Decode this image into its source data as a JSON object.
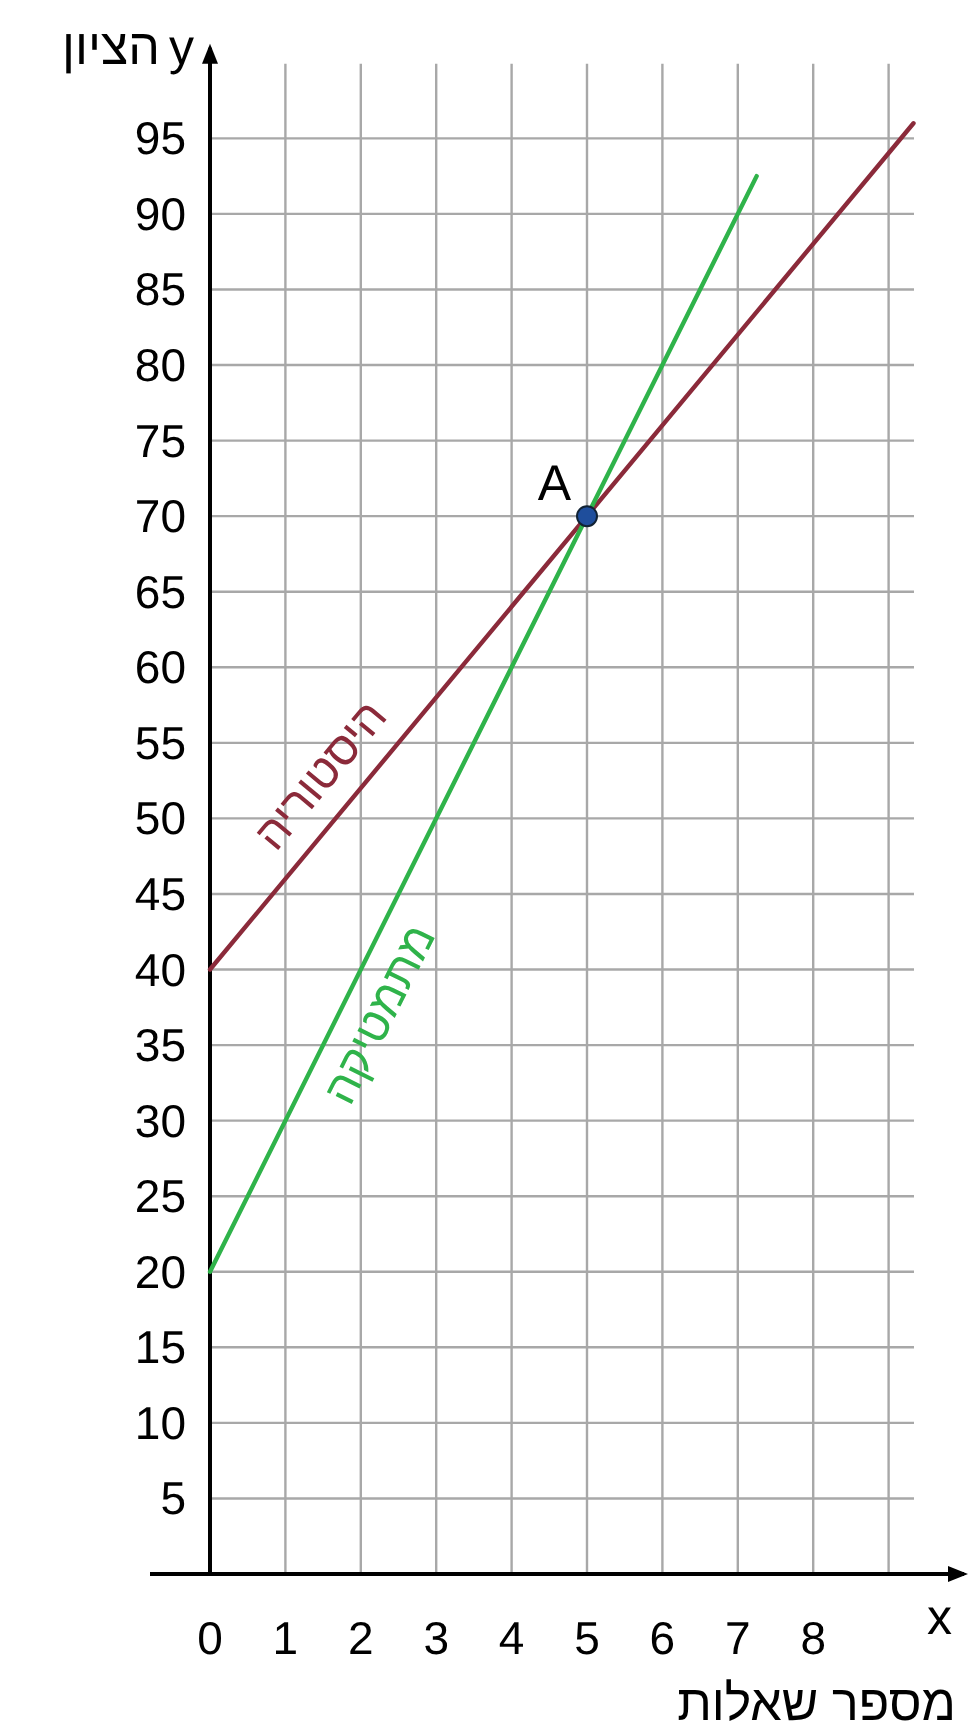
{
  "chart_data": {
    "type": "line",
    "xlabel": "מספר שאלות",
    "ylabel": "הציון",
    "xlim": [
      0,
      10
    ],
    "ylim": [
      0,
      101
    ],
    "xticks": [
      0,
      1,
      2,
      3,
      4,
      5,
      6,
      7,
      8,
      {
        "value": 9,
        "label": null
      }
    ],
    "yticks": [
      5,
      10,
      15,
      20,
      25,
      30,
      35,
      40,
      45,
      50,
      55,
      60,
      65,
      70,
      75,
      80,
      85,
      90,
      95
    ],
    "grid": true,
    "series": [
      {
        "name": "היסטוריה",
        "color": "#8b2a3a",
        "x": [
          0,
          9.33
        ],
        "values": [
          40,
          96
        ]
      },
      {
        "name": "מתמטיקה",
        "color": "#2fb34a",
        "x": [
          0,
          7.25
        ],
        "values": [
          20,
          92.5
        ]
      },
      {
        "type": "scatter",
        "color": "#1f4e9c",
        "x": [
          5
        ],
        "values": [
          70
        ]
      }
    ],
    "annotations": [
      {
        "text": "A",
        "x": 5,
        "y": 70
      },
      "x",
      "y"
    ]
  }
}
